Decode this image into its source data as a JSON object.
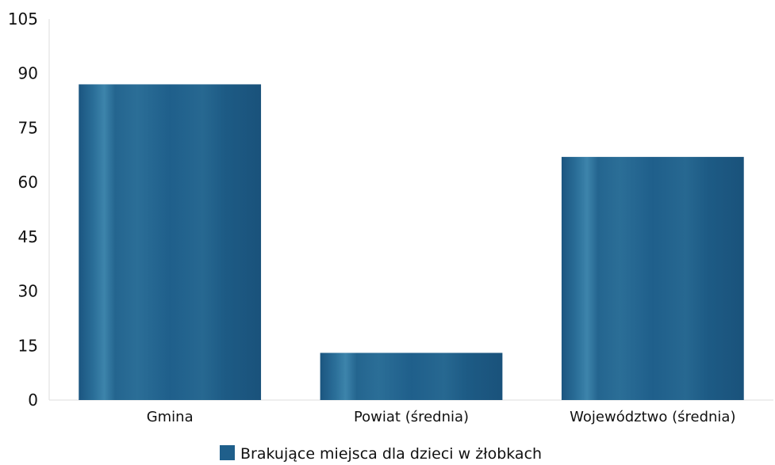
{
  "chart_data": {
    "type": "bar",
    "categories": [
      "Gmina",
      "Powiat (średnia)",
      "Województwo (średnia)"
    ],
    "series": [
      {
        "name": "Brakujące miejsca dla dzieci w żłobkach",
        "values": [
          87,
          13,
          67
        ]
      }
    ],
    "yticks": [
      0,
      15,
      30,
      45,
      60,
      75,
      90,
      105
    ],
    "ylim": [
      0,
      105
    ],
    "grid": false,
    "legend": "bottom-center",
    "colors": {
      "bar": "#1f5f8b",
      "bar_highlight": "#3f86ad",
      "bar_dark": "#174d72",
      "first_category_label": "#1f5a4a",
      "axis": "#dddddd"
    }
  }
}
